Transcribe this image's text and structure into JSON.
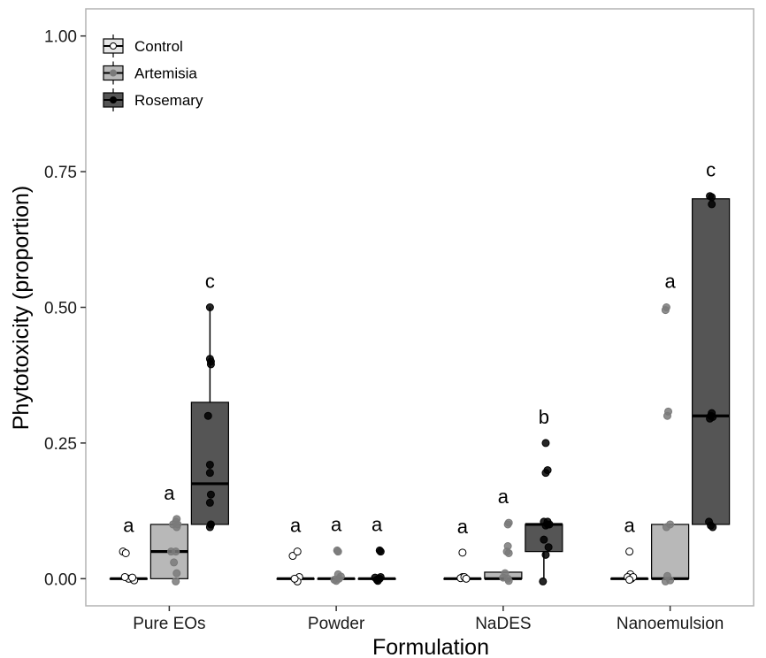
{
  "chart_data": {
    "type": "box",
    "xlabel": "Formulation",
    "ylabel": "Phytotoxicity (proportion)",
    "ylim": [
      -0.05,
      1.05
    ],
    "yticks": [
      0.0,
      0.25,
      0.5,
      0.75,
      1.0
    ],
    "ytick_labels": [
      "0.00",
      "0.25",
      "0.50",
      "0.75",
      "1.00"
    ],
    "categories": [
      "Pure EOs",
      "Powder",
      "NaDES",
      "Nanoemulsion"
    ],
    "legend": {
      "position": "top-left"
    },
    "series": [
      {
        "name": "Control",
        "color": "#e6e6e6",
        "point_fill": "#ffffff"
      },
      {
        "name": "Artemisia",
        "color": "#b8b8b8",
        "point_fill": "#7a7a7a"
      },
      {
        "name": "Rosemary",
        "color": "#555555",
        "point_fill": "#000000"
      }
    ],
    "groups": [
      {
        "category": "Pure EOs",
        "boxes": [
          {
            "series": "Control",
            "q1": 0,
            "median": 0,
            "q3": 0,
            "lower": 0,
            "upper": 0,
            "letter": "a",
            "points": [
              [
                -0.3,
                0.05
              ],
              [
                -0.15,
                0.047
              ],
              [
                0.15,
                0.0
              ],
              [
                0.3,
                -0.003
              ],
              [
                0,
                0.0
              ],
              [
                -0.2,
                0.003
              ],
              [
                0.2,
                0.002
              ]
            ]
          },
          {
            "series": "Artemisia",
            "q1": 0,
            "median": 0.05,
            "q3": 0.1,
            "lower": 0,
            "upper": 0.1,
            "letter": "a",
            "points": [
              [
                0.4,
                0.11
              ],
              [
                0.35,
                0.105
              ],
              [
                0.45,
                0.1
              ],
              [
                0.2,
                0.1
              ],
              [
                0.4,
                0.095
              ],
              [
                0.1,
                0.05
              ],
              [
                0.35,
                0.05
              ],
              [
                0.25,
                0.03
              ],
              [
                0.4,
                0.01
              ],
              [
                0.35,
                -0.005
              ]
            ]
          },
          {
            "series": "Rosemary",
            "q1": 0.1,
            "median": 0.175,
            "q3": 0.325,
            "lower": 0.1,
            "upper": 0.5,
            "letter": "c",
            "points": [
              [
                0,
                0.5
              ],
              [
                0,
                0.405
              ],
              [
                0.05,
                0.4
              ],
              [
                0.05,
                0.395
              ],
              [
                -0.1,
                0.3
              ],
              [
                0,
                0.21
              ],
              [
                0,
                0.195
              ],
              [
                0.05,
                0.155
              ],
              [
                0,
                0.14
              ],
              [
                0.05,
                0.1
              ],
              [
                0,
                0.095
              ],
              [
                0.05,
                0.1
              ]
            ]
          }
        ]
      },
      {
        "category": "Powder",
        "boxes": [
          {
            "series": "Control",
            "q1": 0,
            "median": 0,
            "q3": 0,
            "lower": 0,
            "upper": 0,
            "letter": "a",
            "points": [
              [
                -0.15,
                0.042
              ],
              [
                0.1,
                0.05
              ],
              [
                0.2,
                0.003
              ],
              [
                0.1,
                -0.005
              ],
              [
                -0.05,
                0.0
              ]
            ]
          },
          {
            "series": "Artemisia",
            "q1": 0,
            "median": 0,
            "q3": 0,
            "lower": 0,
            "upper": 0,
            "letter": "a",
            "points": [
              [
                0.05,
                0.052
              ],
              [
                0.1,
                0.05
              ],
              [
                0.1,
                0.008
              ],
              [
                0.25,
                0.004
              ],
              [
                -0.1,
                -0.002
              ],
              [
                0.0,
                -0.004
              ],
              [
                0.15,
                0.0
              ]
            ]
          },
          {
            "series": "Rosemary",
            "q1": 0,
            "median": 0,
            "q3": 0,
            "lower": 0,
            "upper": 0,
            "letter": "a",
            "points": [
              [
                0.15,
                0.052
              ],
              [
                0.2,
                0.05
              ],
              [
                0.1,
                0.0
              ],
              [
                0.05,
                -0.004
              ],
              [
                -0.1,
                0.002
              ],
              [
                0.15,
                0.0
              ],
              [
                0.2,
                0.003
              ],
              [
                0.0,
                -0.002
              ]
            ]
          }
        ]
      },
      {
        "category": "NaDES",
        "boxes": [
          {
            "series": "Control",
            "q1": 0,
            "median": 0,
            "q3": 0,
            "lower": 0,
            "upper": 0,
            "letter": "a",
            "points": [
              [
                0.0,
                0.048
              ],
              [
                0.0,
                0.003
              ],
              [
                -0.1,
                0.001
              ],
              [
                0.1,
                0.003
              ],
              [
                0.2,
                0.0
              ]
            ]
          },
          {
            "series": "Artemisia",
            "q1": 0,
            "median": 0,
            "q3": 0.012,
            "lower": 0,
            "upper": 0.012,
            "letter": "a",
            "points": [
              [
                0.25,
                0.1
              ],
              [
                0.3,
                0.103
              ],
              [
                0.25,
                0.06
              ],
              [
                0.2,
                0.05
              ],
              [
                0.3,
                0.047
              ],
              [
                0.1,
                0.01
              ],
              [
                0.25,
                0.0
              ],
              [
                0.3,
                -0.004
              ],
              [
                0.0,
                0.002
              ]
            ]
          },
          {
            "series": "Rosemary",
            "q1": 0.05,
            "median": 0.1,
            "q3": 0.1,
            "lower": 0,
            "upper": 0.1,
            "letter": "b",
            "points": [
              [
                0.1,
                0.25
              ],
              [
                0.2,
                0.2
              ],
              [
                0.1,
                0.195
              ],
              [
                0.0,
                0.105
              ],
              [
                0.2,
                0.105
              ],
              [
                0.3,
                0.1
              ],
              [
                0.1,
                0.098
              ],
              [
                0.2,
                0.1
              ],
              [
                0.0,
                0.072
              ],
              [
                0.25,
                0.058
              ],
              [
                0.1,
                0.044
              ],
              [
                -0.05,
                -0.005
              ]
            ]
          }
        ]
      },
      {
        "category": "Nanoemulsion",
        "boxes": [
          {
            "series": "Control",
            "q1": 0,
            "median": 0,
            "q3": 0,
            "lower": 0,
            "upper": 0,
            "letter": "a",
            "points": [
              [
                0.0,
                0.05
              ],
              [
                0.05,
                0.008
              ],
              [
                -0.1,
                0.003
              ],
              [
                0.1,
                0.0
              ],
              [
                0.2,
                0.003
              ],
              [
                0.0,
                -0.002
              ]
            ]
          },
          {
            "series": "Artemisia",
            "q1": 0,
            "median": 0,
            "q3": 0.1,
            "lower": 0,
            "upper": 0.1,
            "letter": "a",
            "points": [
              [
                -0.2,
                0.5
              ],
              [
                -0.25,
                0.495
              ],
              [
                -0.1,
                0.308
              ],
              [
                -0.15,
                0.3
              ],
              [
                0.0,
                0.1
              ],
              [
                -0.2,
                0.095
              ],
              [
                -0.15,
                0.005
              ],
              [
                -0.25,
                -0.005
              ],
              [
                0.0,
                -0.003
              ]
            ]
          },
          {
            "series": "Rosemary",
            "q1": 0.1,
            "median": 0.3,
            "q3": 0.7,
            "lower": 0.1,
            "upper": 0.7,
            "letter": "c",
            "points": [
              [
                -0.05,
                0.705
              ],
              [
                0.05,
                0.703
              ],
              [
                0.05,
                0.69
              ],
              [
                0.05,
                0.305
              ],
              [
                -0.05,
                0.295
              ],
              [
                0.0,
                0.3
              ],
              [
                0.1,
                0.298
              ],
              [
                -0.1,
                0.105
              ],
              [
                0.0,
                0.098
              ],
              [
                0.1,
                0.095
              ]
            ]
          }
        ]
      }
    ]
  }
}
